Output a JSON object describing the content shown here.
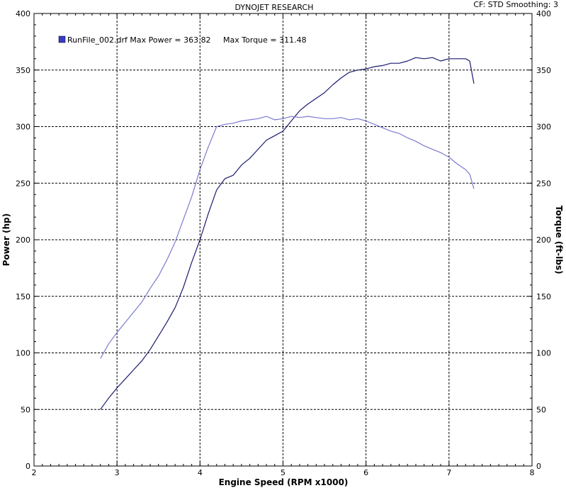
{
  "header": {
    "title": "DYNOJET RESEARCH",
    "status": "CF: STD  Smoothing: 3"
  },
  "legend": {
    "text": "RunFile_002.drf Max Power = 363.82     Max Torque = 311.48"
  },
  "colors": {
    "power": "#1a1a6e",
    "torque": "#7a7ad0",
    "legend_swatch": "#3a3ac8"
  },
  "chart_data": {
    "type": "line",
    "title": "DYNOJET RESEARCH",
    "xlabel": "Engine Speed (RPM x1000)",
    "ylabel": "Power (hp)",
    "y2label": "Torque (ft-lbs)",
    "xlim": [
      2,
      8
    ],
    "ylim": [
      0,
      400
    ],
    "y2lim": [
      0,
      400
    ],
    "grid": true,
    "legend_position": "top-left",
    "x_ticks": [
      "2",
      "3",
      "4",
      "5",
      "6",
      "7",
      "8"
    ],
    "y_ticks": [
      "0",
      "50",
      "100",
      "150",
      "200",
      "250",
      "300",
      "350",
      "400"
    ],
    "y2_ticks": [
      "0",
      "50",
      "100",
      "150",
      "200",
      "250",
      "300",
      "350",
      "400"
    ],
    "series": [
      {
        "axis": "left",
        "x": [
          2.8,
          2.9,
          3.0,
          3.1,
          3.2,
          3.3,
          3.4,
          3.5,
          3.6,
          3.7,
          3.8,
          3.9,
          4.0,
          4.1,
          4.2,
          4.3,
          4.4,
          4.5,
          4.6,
          4.7,
          4.8,
          4.9,
          5.0,
          5.1,
          5.2,
          5.3,
          5.4,
          5.5,
          5.6,
          5.7,
          5.8,
          5.9,
          6.0,
          6.1,
          6.2,
          6.3,
          6.4,
          6.5,
          6.6,
          6.7,
          6.8,
          6.9,
          7.0,
          7.1,
          7.2,
          7.25,
          7.3
        ],
        "values": [
          50,
          60,
          69,
          77,
          85,
          93,
          103,
          115,
          127,
          140,
          158,
          180,
          200,
          223,
          244,
          254,
          257,
          266,
          272,
          280,
          288,
          292,
          296,
          305,
          314,
          320,
          325,
          330,
          337,
          343,
          348,
          350,
          351,
          353,
          354,
          356,
          356,
          358,
          361,
          360,
          361,
          358,
          360,
          360,
          360,
          358,
          338
        ]
      },
      {
        "axis": "right",
        "x": [
          2.8,
          2.9,
          3.0,
          3.1,
          3.2,
          3.3,
          3.4,
          3.5,
          3.6,
          3.7,
          3.8,
          3.9,
          4.0,
          4.1,
          4.2,
          4.3,
          4.4,
          4.5,
          4.6,
          4.7,
          4.8,
          4.9,
          5.0,
          5.1,
          5.2,
          5.3,
          5.4,
          5.5,
          5.6,
          5.7,
          5.8,
          5.9,
          6.0,
          6.1,
          6.2,
          6.3,
          6.4,
          6.5,
          6.6,
          6.7,
          6.8,
          6.9,
          7.0,
          7.1,
          7.2,
          7.25,
          7.3
        ],
        "values": [
          95,
          108,
          118,
          127,
          136,
          145,
          157,
          168,
          182,
          198,
          218,
          238,
          262,
          282,
          300,
          302,
          303,
          305,
          306,
          307,
          309,
          306,
          307,
          309,
          308,
          309,
          308,
          307,
          307,
          308,
          306,
          307,
          305,
          302,
          299,
          296,
          294,
          290,
          287,
          283,
          280,
          277,
          273,
          267,
          262,
          258,
          245
        ]
      }
    ]
  }
}
